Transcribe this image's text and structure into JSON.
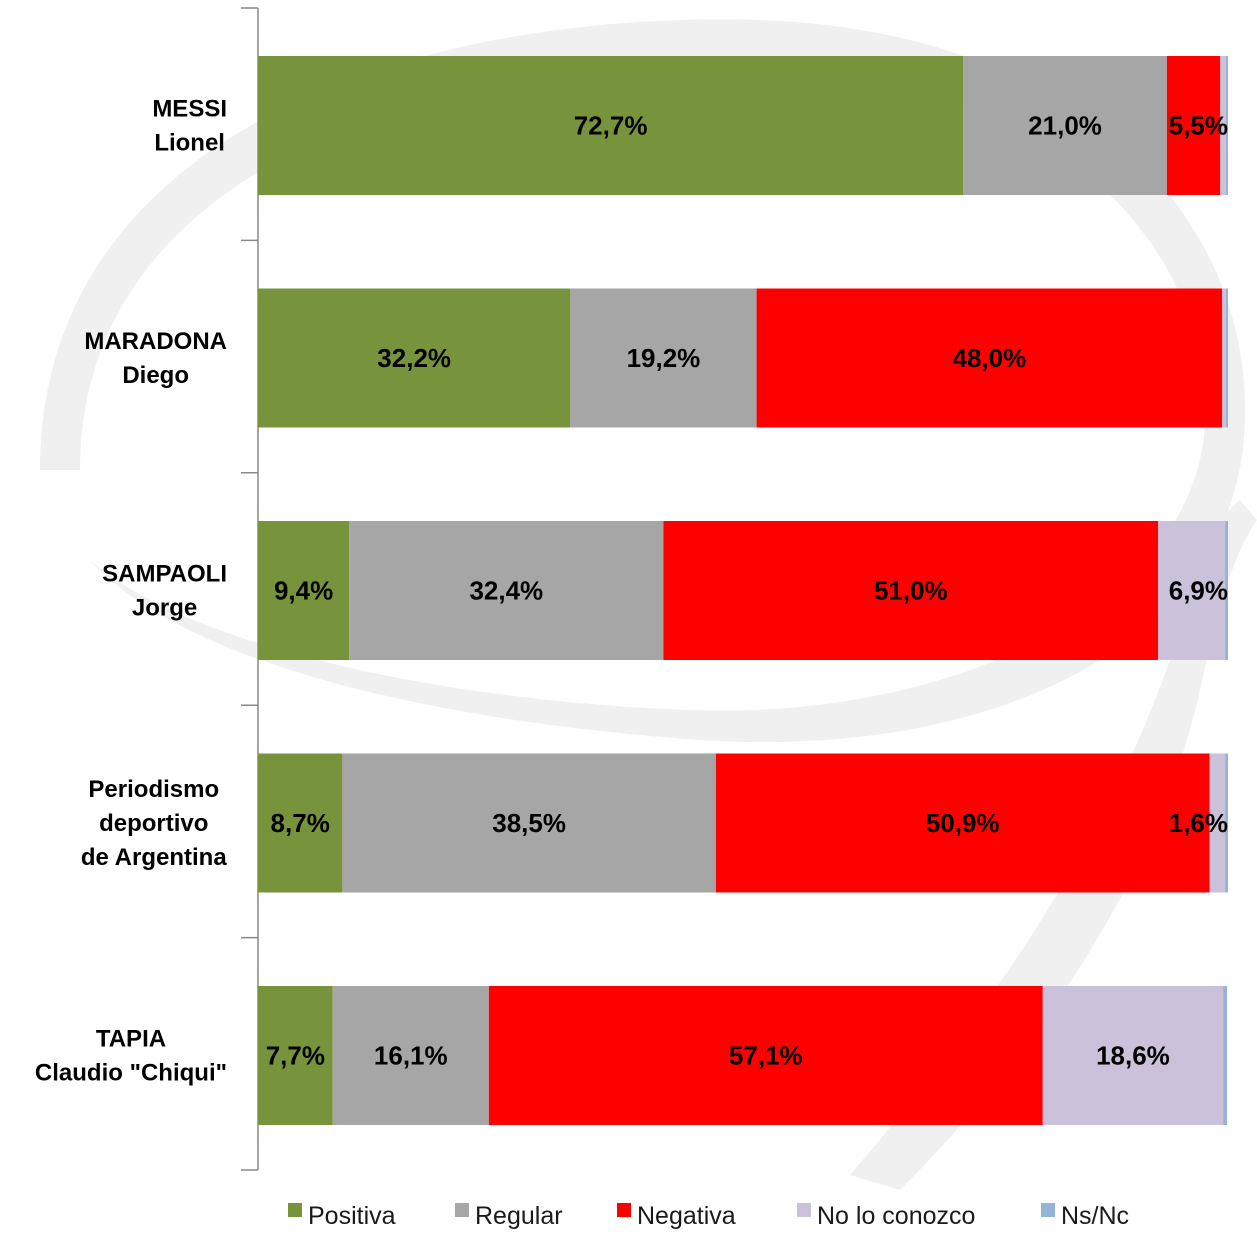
{
  "chart_data": {
    "type": "bar",
    "orientation": "horizontal",
    "stacked": true,
    "categories": [
      [
        "MESSI",
        "Lionel"
      ],
      [
        "MARADONA",
        "Diego"
      ],
      [
        "SAMPAOLI",
        "Jorge"
      ],
      [
        "Periodismo",
        "deportivo",
        "de Argentina"
      ],
      [
        "TAPIA",
        "Claudio \"Chiqui\""
      ]
    ],
    "series": [
      {
        "name": "Positiva",
        "color": "#77933c",
        "values": [
          72.7,
          32.2,
          9.4,
          8.7,
          7.7
        ],
        "labels": [
          "72,7%",
          "32,2%",
          "9,4%",
          "8,7%",
          "7,7%"
        ]
      },
      {
        "name": "Regular",
        "color": "#a6a6a6",
        "values": [
          21.0,
          19.2,
          32.4,
          38.5,
          16.1
        ],
        "labels": [
          "21,0%",
          "19,2%",
          "32,4%",
          "38,5%",
          "16,1%"
        ]
      },
      {
        "name": "Negativa",
        "color": "#ff0000",
        "values": [
          5.5,
          48.0,
          51.0,
          50.9,
          57.1
        ],
        "labels": [
          "5,5%",
          "48,0%",
          "51,0%",
          "50,9%",
          "57,1%"
        ]
      },
      {
        "name": "No lo conozco",
        "color": "#ccc1da",
        "values": [
          0.6,
          0.4,
          6.9,
          1.6,
          18.6
        ],
        "labels": [
          "",
          "",
          "6,9%",
          "1,6%",
          "18,6%"
        ]
      },
      {
        "name": "Ns/Nc",
        "color": "#95b3d7",
        "values": [
          0.2,
          0.2,
          0.3,
          0.3,
          0.4
        ],
        "labels": [
          "",
          "",
          "",
          "",
          ""
        ]
      }
    ],
    "xlim": [
      0,
      100
    ],
    "legend": "bottom",
    "grid": false,
    "watermark_color": "#f0f0f0"
  }
}
